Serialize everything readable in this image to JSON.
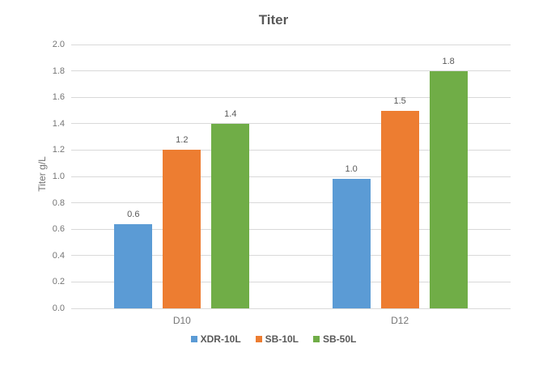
{
  "chart_data": {
    "type": "bar",
    "title": "Titer",
    "ylabel": "Titer g/L",
    "xlabel": "",
    "categories": [
      "D10",
      "D12"
    ],
    "series": [
      {
        "name": "XDR-10L",
        "color": "#5B9BD5",
        "values": [
          0.6,
          1.0
        ],
        "plotted": [
          0.64,
          0.98
        ]
      },
      {
        "name": "SB-10L",
        "color": "#ED7D31",
        "values": [
          1.2,
          1.5
        ],
        "plotted": [
          1.2,
          1.5
        ]
      },
      {
        "name": "SB-50L",
        "color": "#70AD47",
        "values": [
          1.4,
          1.8
        ],
        "plotted": [
          1.4,
          1.8
        ]
      }
    ],
    "ylim": [
      0.0,
      2.0
    ],
    "ytick_step": 0.2,
    "ytick_labels": [
      "0.0",
      "0.2",
      "0.4",
      "0.6",
      "0.8",
      "1.0",
      "1.2",
      "1.4",
      "1.6",
      "1.8",
      "2.0"
    ],
    "grid": true,
    "legend_position": "bottom",
    "data_labels_shown": true
  },
  "colors": {
    "background": "#ffffff",
    "gridline": "#d9d9d9",
    "axis_text": "#757575",
    "title_text": "#595959",
    "label_text": "#595959"
  }
}
